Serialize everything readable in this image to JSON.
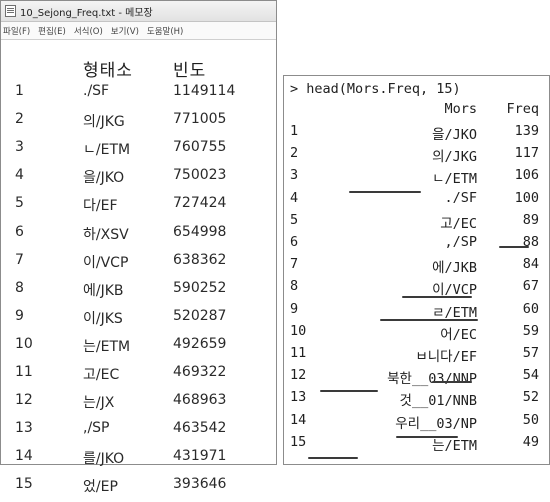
{
  "notepad": {
    "title": "10_Sejong_Freq.txt - 메모장",
    "menu": [
      "파일(F)",
      "편집(E)",
      "서식(O)",
      "보기(V)",
      "도움말(H)"
    ],
    "header": {
      "morph": "형태소",
      "freq": "빈도"
    },
    "rows": [
      {
        "rank": "1",
        "morph": "./SF",
        "freq": "1149114"
      },
      {
        "rank": "2",
        "morph": "의/JKG",
        "freq": "771005"
      },
      {
        "rank": "3",
        "morph": "ㄴ/ETM",
        "freq": "760755"
      },
      {
        "rank": "4",
        "morph": "을/JKO",
        "freq": "750023"
      },
      {
        "rank": "5",
        "morph": "다/EF",
        "freq": "727424"
      },
      {
        "rank": "6",
        "morph": "하/XSV",
        "freq": "654998"
      },
      {
        "rank": "7",
        "morph": "이/VCP",
        "freq": "638362"
      },
      {
        "rank": "8",
        "morph": "에/JKB",
        "freq": "590252"
      },
      {
        "rank": "9",
        "morph": "이/JKS",
        "freq": "520287"
      },
      {
        "rank": "10",
        "morph": "는/ETM",
        "freq": "492659"
      },
      {
        "rank": "11",
        "morph": "고/EC",
        "freq": "469322"
      },
      {
        "rank": "12",
        "morph": "는/JX",
        "freq": "468963"
      },
      {
        "rank": "13",
        "morph": ",/SP",
        "freq": "463542"
      },
      {
        "rank": "14",
        "morph": "를/JKO",
        "freq": "431971"
      },
      {
        "rank": "15",
        "morph": "었/EP",
        "freq": "393646"
      }
    ]
  },
  "r_console": {
    "command": "> head(Mors.Freq, 15)",
    "header": {
      "mors": "Mors",
      "freq": "Freq"
    },
    "rows": [
      {
        "idx": "1",
        "mors": "을/JKO",
        "freq": "139"
      },
      {
        "idx": "2",
        "mors": "의/JKG",
        "freq": "117"
      },
      {
        "idx": "3",
        "mors": "ㄴ/ETM",
        "freq": "106"
      },
      {
        "idx": "4",
        "mors": "./SF",
        "freq": "100"
      },
      {
        "idx": "5",
        "mors": "고/EC",
        "freq": "89"
      },
      {
        "idx": "6",
        "mors": ",/SP",
        "freq": "88"
      },
      {
        "idx": "7",
        "mors": "에/JKB",
        "freq": "84"
      },
      {
        "idx": "8",
        "mors": "이/VCP",
        "freq": "67"
      },
      {
        "idx": "9",
        "mors": "ㄹ/ETM",
        "freq": "60"
      },
      {
        "idx": "10",
        "mors": "어/EC",
        "freq": "59"
      },
      {
        "idx": "11",
        "mors": "ㅂ니다/EF",
        "freq": "57"
      },
      {
        "idx": "12",
        "mors": "북한__03/NNP",
        "freq": "54"
      },
      {
        "idx": "13",
        "mors": "것__01/NNB",
        "freq": "52"
      },
      {
        "idx": "14",
        "mors": "우리__03/NP",
        "freq": "50"
      },
      {
        "idx": "15",
        "mors": "는/ETM",
        "freq": "49"
      }
    ]
  }
}
